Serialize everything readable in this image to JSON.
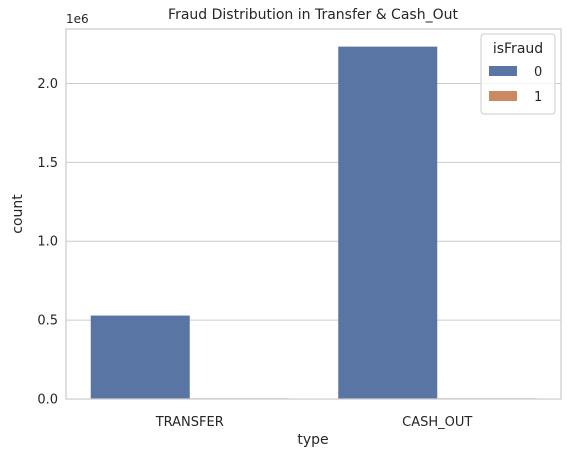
{
  "chart_data": {
    "type": "bar",
    "title": "Fraud Distribution in Transfer & Cash_Out",
    "xlabel": "type",
    "ylabel": "count",
    "offset_label": "1e6",
    "categories": [
      "TRANSFER",
      "CASH_OUT"
    ],
    "series": [
      {
        "name": "0",
        "values": [
          528812,
          2233384
        ],
        "color": "#5875a4"
      },
      {
        "name": "1",
        "values": [
          4097,
          4116
        ],
        "color": "#cc8963"
      }
    ],
    "ylim": [
      0,
      2345053
    ],
    "yticks": [
      0,
      500000,
      1000000,
      1500000,
      2000000
    ],
    "ytick_labels": [
      "0.0",
      "0.5",
      "1.0",
      "1.5",
      "2.0"
    ],
    "grid": "horizontal",
    "legend": {
      "title": "isFraud",
      "placement": "top-right"
    }
  }
}
